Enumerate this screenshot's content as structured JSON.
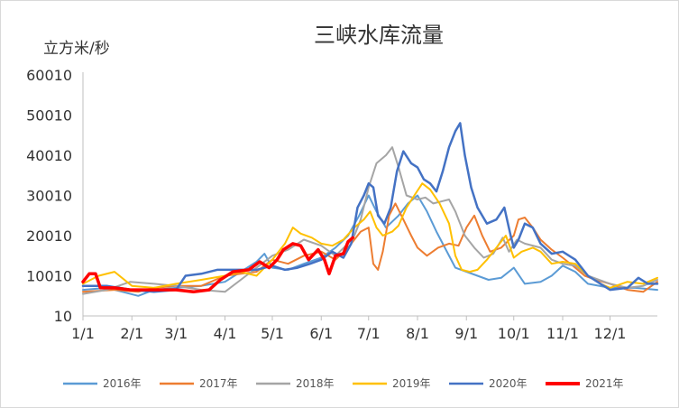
{
  "chart_data": {
    "type": "line",
    "title": "三峡水库流量",
    "ylabel": "立方米/秒",
    "xlabel": "",
    "ylim": [
      10,
      60010
    ],
    "yticks": [
      10,
      10010,
      20010,
      30010,
      40010,
      50010,
      60010
    ],
    "xlim": [
      0,
      364
    ],
    "xticks": [
      {
        "label": "1/1",
        "day": 0
      },
      {
        "label": "2/1",
        "day": 31
      },
      {
        "label": "3/1",
        "day": 59
      },
      {
        "label": "4/1",
        "day": 90
      },
      {
        "label": "5/1",
        "day": 120
      },
      {
        "label": "6/1",
        "day": 151
      },
      {
        "label": "7/1",
        "day": 181
      },
      {
        "label": "8/1",
        "day": 212
      },
      {
        "label": "9/1",
        "day": 243
      },
      {
        "label": "10/1",
        "day": 273
      },
      {
        "label": "11/1",
        "day": 304
      },
      {
        "label": "12/1",
        "day": 334
      }
    ],
    "grid": false,
    "legend_position": "bottom",
    "series": [
      {
        "name": "2016年",
        "color": "#5B9BD5",
        "width": 2,
        "points": [
          [
            0,
            6500
          ],
          [
            15,
            7000
          ],
          [
            25,
            6000
          ],
          [
            35,
            5000
          ],
          [
            45,
            6500
          ],
          [
            59,
            7000
          ],
          [
            75,
            7500
          ],
          [
            90,
            8500
          ],
          [
            100,
            11000
          ],
          [
            110,
            13500
          ],
          [
            115,
            15500
          ],
          [
            120,
            12000
          ],
          [
            130,
            11500
          ],
          [
            140,
            13000
          ],
          [
            151,
            14500
          ],
          [
            160,
            17000
          ],
          [
            168,
            20000
          ],
          [
            175,
            25000
          ],
          [
            181,
            30000
          ],
          [
            186,
            26000
          ],
          [
            192,
            22000
          ],
          [
            200,
            25000
          ],
          [
            206,
            28000
          ],
          [
            212,
            30000
          ],
          [
            218,
            26000
          ],
          [
            224,
            21000
          ],
          [
            230,
            16500
          ],
          [
            236,
            12000
          ],
          [
            243,
            11000
          ],
          [
            250,
            10000
          ],
          [
            257,
            9000
          ],
          [
            265,
            9500
          ],
          [
            273,
            12000
          ],
          [
            280,
            8000
          ],
          [
            290,
            8500
          ],
          [
            297,
            10000
          ],
          [
            304,
            12500
          ],
          [
            312,
            11000
          ],
          [
            320,
            8000
          ],
          [
            334,
            7000
          ],
          [
            350,
            7000
          ],
          [
            364,
            6500
          ]
        ]
      },
      {
        "name": "2017年",
        "color": "#ED7D31",
        "width": 2,
        "points": [
          [
            0,
            6000
          ],
          [
            20,
            6500
          ],
          [
            35,
            6000
          ],
          [
            45,
            7000
          ],
          [
            59,
            7500
          ],
          [
            75,
            7500
          ],
          [
            90,
            10000
          ],
          [
            100,
            10500
          ],
          [
            110,
            11000
          ],
          [
            120,
            14000
          ],
          [
            130,
            13000
          ],
          [
            140,
            15000
          ],
          [
            151,
            16000
          ],
          [
            160,
            14000
          ],
          [
            168,
            17000
          ],
          [
            176,
            21000
          ],
          [
            181,
            22000
          ],
          [
            184,
            13000
          ],
          [
            187,
            11500
          ],
          [
            190,
            16000
          ],
          [
            194,
            25000
          ],
          [
            198,
            28000
          ],
          [
            203,
            24000
          ],
          [
            208,
            20000
          ],
          [
            212,
            17000
          ],
          [
            218,
            15000
          ],
          [
            225,
            17000
          ],
          [
            232,
            18000
          ],
          [
            238,
            17500
          ],
          [
            243,
            22000
          ],
          [
            248,
            25000
          ],
          [
            253,
            20000
          ],
          [
            258,
            16000
          ],
          [
            265,
            17000
          ],
          [
            273,
            20000
          ],
          [
            276,
            24000
          ],
          [
            280,
            24500
          ],
          [
            285,
            22000
          ],
          [
            290,
            19000
          ],
          [
            297,
            16500
          ],
          [
            304,
            14500
          ],
          [
            312,
            12000
          ],
          [
            318,
            10000
          ],
          [
            325,
            9000
          ],
          [
            334,
            8000
          ],
          [
            345,
            6500
          ],
          [
            355,
            6000
          ],
          [
            364,
            8500
          ]
        ]
      },
      {
        "name": "2018年",
        "color": "#A5A5A5",
        "width": 2,
        "points": [
          [
            0,
            5500
          ],
          [
            15,
            6500
          ],
          [
            30,
            8500
          ],
          [
            45,
            8000
          ],
          [
            59,
            7500
          ],
          [
            75,
            6500
          ],
          [
            90,
            6000
          ],
          [
            100,
            9000
          ],
          [
            110,
            12000
          ],
          [
            120,
            15000
          ],
          [
            130,
            16500
          ],
          [
            140,
            19000
          ],
          [
            151,
            17500
          ],
          [
            160,
            15000
          ],
          [
            168,
            18000
          ],
          [
            172,
            20000
          ],
          [
            176,
            24000
          ],
          [
            181,
            32000
          ],
          [
            186,
            38000
          ],
          [
            192,
            40000
          ],
          [
            196,
            42000
          ],
          [
            200,
            37000
          ],
          [
            205,
            30000
          ],
          [
            212,
            29000
          ],
          [
            217,
            29500
          ],
          [
            222,
            28000
          ],
          [
            227,
            28500
          ],
          [
            232,
            29000
          ],
          [
            236,
            26000
          ],
          [
            242,
            20000
          ],
          [
            248,
            17000
          ],
          [
            254,
            14500
          ],
          [
            260,
            15500
          ],
          [
            266,
            19500
          ],
          [
            270,
            16000
          ],
          [
            275,
            19000
          ],
          [
            280,
            18000
          ],
          [
            290,
            17000
          ],
          [
            297,
            14000
          ],
          [
            304,
            13000
          ],
          [
            312,
            12500
          ],
          [
            320,
            10000
          ],
          [
            334,
            8000
          ],
          [
            345,
            7000
          ],
          [
            355,
            7500
          ],
          [
            364,
            9000
          ]
        ]
      },
      {
        "name": "2019年",
        "color": "#FFC000",
        "width": 2,
        "points": [
          [
            0,
            8000
          ],
          [
            10,
            10000
          ],
          [
            20,
            11000
          ],
          [
            31,
            7500
          ],
          [
            45,
            7000
          ],
          [
            59,
            8000
          ],
          [
            75,
            9000
          ],
          [
            90,
            10000
          ],
          [
            100,
            11000
          ],
          [
            110,
            10000
          ],
          [
            120,
            14000
          ],
          [
            128,
            18000
          ],
          [
            133,
            22000
          ],
          [
            138,
            20500
          ],
          [
            145,
            19500
          ],
          [
            151,
            18000
          ],
          [
            158,
            17500
          ],
          [
            165,
            19000
          ],
          [
            172,
            22000
          ],
          [
            178,
            24000
          ],
          [
            182,
            26000
          ],
          [
            186,
            22000
          ],
          [
            190,
            20000
          ],
          [
            196,
            21000
          ],
          [
            200,
            22500
          ],
          [
            205,
            27000
          ],
          [
            210,
            30000
          ],
          [
            215,
            33000
          ],
          [
            220,
            31500
          ],
          [
            226,
            28000
          ],
          [
            232,
            23000
          ],
          [
            236,
            15000
          ],
          [
            240,
            11500
          ],
          [
            245,
            11000
          ],
          [
            250,
            11500
          ],
          [
            256,
            14000
          ],
          [
            262,
            17000
          ],
          [
            268,
            20000
          ],
          [
            273,
            14500
          ],
          [
            278,
            16000
          ],
          [
            285,
            17000
          ],
          [
            290,
            16000
          ],
          [
            297,
            13000
          ],
          [
            304,
            13500
          ],
          [
            312,
            13000
          ],
          [
            320,
            10000
          ],
          [
            328,
            8000
          ],
          [
            334,
            7000
          ],
          [
            345,
            8500
          ],
          [
            355,
            8000
          ],
          [
            364,
            9500
          ]
        ]
      },
      {
        "name": "2020年",
        "color": "#4472C4",
        "width": 2.5,
        "points": [
          [
            0,
            7500
          ],
          [
            15,
            7500
          ],
          [
            31,
            6500
          ],
          [
            45,
            6000
          ],
          [
            59,
            6500
          ],
          [
            65,
            10000
          ],
          [
            75,
            10500
          ],
          [
            85,
            11500
          ],
          [
            100,
            11500
          ],
          [
            110,
            11500
          ],
          [
            120,
            12500
          ],
          [
            128,
            11500
          ],
          [
            136,
            12000
          ],
          [
            144,
            13000
          ],
          [
            151,
            14000
          ],
          [
            158,
            16000
          ],
          [
            165,
            14500
          ],
          [
            170,
            18000
          ],
          [
            174,
            27000
          ],
          [
            178,
            30000
          ],
          [
            181,
            33000
          ],
          [
            184,
            32000
          ],
          [
            187,
            25000
          ],
          [
            191,
            23000
          ],
          [
            195,
            27000
          ],
          [
            199,
            36000
          ],
          [
            203,
            41000
          ],
          [
            208,
            38000
          ],
          [
            212,
            37000
          ],
          [
            216,
            34000
          ],
          [
            220,
            33000
          ],
          [
            224,
            31000
          ],
          [
            228,
            36000
          ],
          [
            232,
            42000
          ],
          [
            236,
            46000
          ],
          [
            239,
            48000
          ],
          [
            242,
            40000
          ],
          [
            246,
            32000
          ],
          [
            250,
            27000
          ],
          [
            256,
            23000
          ],
          [
            262,
            24000
          ],
          [
            267,
            27000
          ],
          [
            271,
            20000
          ],
          [
            273,
            17000
          ],
          [
            276,
            19000
          ],
          [
            280,
            23000
          ],
          [
            285,
            22000
          ],
          [
            290,
            18000
          ],
          [
            297,
            15500
          ],
          [
            304,
            16000
          ],
          [
            312,
            14000
          ],
          [
            320,
            10000
          ],
          [
            328,
            8000
          ],
          [
            334,
            6500
          ],
          [
            345,
            7000
          ],
          [
            352,
            9500
          ],
          [
            358,
            8000
          ],
          [
            364,
            8000
          ]
        ]
      },
      {
        "name": "2021年",
        "color": "#FF0000",
        "width": 3.5,
        "points": [
          [
            0,
            8500
          ],
          [
            4,
            10500
          ],
          [
            8,
            10500
          ],
          [
            11,
            7000
          ],
          [
            20,
            7000
          ],
          [
            30,
            6500
          ],
          [
            40,
            6500
          ],
          [
            50,
            6500
          ],
          [
            59,
            6500
          ],
          [
            70,
            6000
          ],
          [
            80,
            6500
          ],
          [
            87,
            9000
          ],
          [
            95,
            11000
          ],
          [
            105,
            11500
          ],
          [
            112,
            13500
          ],
          [
            118,
            12000
          ],
          [
            123,
            14000
          ],
          [
            127,
            16500
          ],
          [
            133,
            18000
          ],
          [
            138,
            17500
          ],
          [
            143,
            14000
          ],
          [
            149,
            16500
          ],
          [
            153,
            14000
          ],
          [
            156,
            10500
          ],
          [
            160,
            15000
          ],
          [
            165,
            15500
          ],
          [
            168,
            18500
          ],
          [
            171,
            19500
          ]
        ]
      }
    ]
  }
}
